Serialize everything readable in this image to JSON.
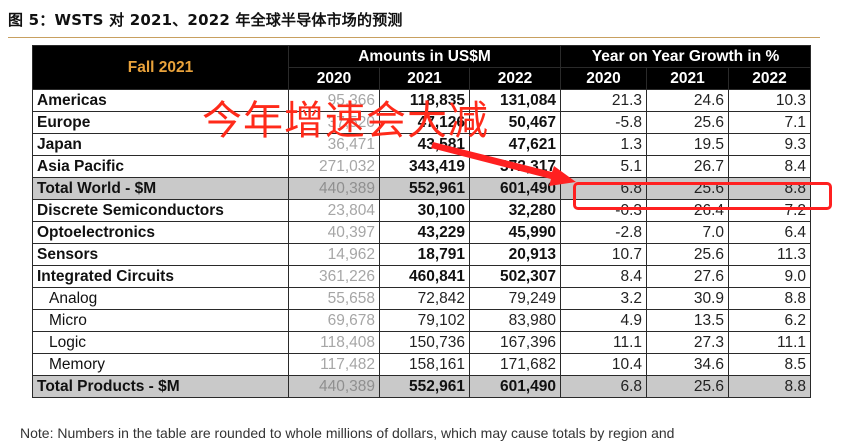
{
  "caption": "图 5：WSTS 对 2021、2022 年全球半导体市场的预测",
  "table": {
    "corner_label": "Fall 2021",
    "group_headers": {
      "amounts": "Amounts in US$M",
      "growth": "Year on Year Growth in %"
    },
    "year_headers": [
      "2020",
      "2021",
      "2022",
      "2020",
      "2021",
      "2022"
    ],
    "rows": [
      {
        "label": "Americas",
        "amounts": [
          "95,366",
          "118,835",
          "131,084"
        ],
        "growth": [
          "21.3",
          "24.6",
          "10.3"
        ]
      },
      {
        "label": "Europe",
        "amounts": [
          "37,520",
          "47,126",
          "50,467"
        ],
        "growth": [
          "-5.8",
          "25.6",
          "7.1"
        ]
      },
      {
        "label": "Japan",
        "amounts": [
          "36,471",
          "43,581",
          "47,621"
        ],
        "growth": [
          "1.3",
          "19.5",
          "9.3"
        ]
      },
      {
        "label": "Asia Pacific",
        "amounts": [
          "271,032",
          "343,419",
          "372,317"
        ],
        "growth": [
          "5.1",
          "26.7",
          "8.4"
        ]
      },
      {
        "label": "Total World - $M",
        "amounts": [
          "440,389",
          "552,961",
          "601,490"
        ],
        "growth": [
          "6.8",
          "25.6",
          "8.8"
        ]
      },
      {
        "label": "Discrete Semiconductors",
        "amounts": [
          "23,804",
          "30,100",
          "32,280"
        ],
        "growth": [
          "-0.3",
          "26.4",
          "7.2"
        ]
      },
      {
        "label": "Optoelectronics",
        "amounts": [
          "40,397",
          "43,229",
          "45,990"
        ],
        "growth": [
          "-2.8",
          "7.0",
          "6.4"
        ]
      },
      {
        "label": "Sensors",
        "amounts": [
          "14,962",
          "18,791",
          "20,913"
        ],
        "growth": [
          "10.7",
          "25.6",
          "11.3"
        ]
      },
      {
        "label": "Integrated Circuits",
        "amounts": [
          "361,226",
          "460,841",
          "502,307"
        ],
        "growth": [
          "8.4",
          "27.6",
          "9.0"
        ]
      },
      {
        "label": "Analog",
        "amounts": [
          "55,658",
          "72,842",
          "79,249"
        ],
        "growth": [
          "3.2",
          "30.9",
          "8.8"
        ]
      },
      {
        "label": "Micro",
        "amounts": [
          "69,678",
          "79,102",
          "83,980"
        ],
        "growth": [
          "4.9",
          "13.5",
          "6.2"
        ]
      },
      {
        "label": "Logic",
        "amounts": [
          "118,408",
          "150,736",
          "167,396"
        ],
        "growth": [
          "11.1",
          "27.3",
          "11.1"
        ]
      },
      {
        "label": "Memory",
        "amounts": [
          "117,482",
          "158,161",
          "171,682"
        ],
        "growth": [
          "10.4",
          "34.6",
          "8.5"
        ]
      },
      {
        "label": "Total Products - $M",
        "amounts": [
          "440,389",
          "552,961",
          "601,490"
        ],
        "growth": [
          "6.8",
          "25.6",
          "8.8"
        ]
      }
    ]
  },
  "annotation": {
    "text": "今年增速会大减",
    "color": "#ff2a1a",
    "highlight_color": "#ff2020"
  },
  "note": "Note: Numbers in the table are rounded to whole millions of dollars, which may cause totals by region and"
}
